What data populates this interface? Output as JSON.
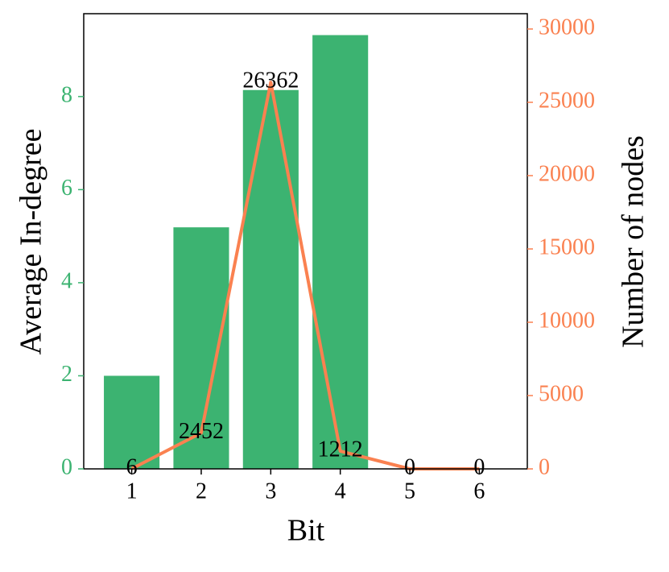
{
  "chart_data": {
    "type": "bar",
    "x": [
      1,
      2,
      3,
      4,
      5,
      6
    ],
    "xlim": [
      0.31,
      6.69
    ],
    "xticks": [
      1,
      2,
      3,
      4,
      5,
      6
    ],
    "xlabel": "Bit",
    "ylabel": "Average In-degree",
    "y2label": "Number of nodes",
    "ylim": [
      0,
      9.78
    ],
    "yticks": [
      0,
      2,
      4,
      6,
      8
    ],
    "y2lim": [
      0,
      31044
    ],
    "y2ticks": [
      0,
      5000,
      10000,
      15000,
      20000,
      25000,
      30000
    ],
    "series": [
      {
        "type": "bar",
        "color": "#3cb371",
        "values": [
          2.0,
          5.19,
          8.14,
          9.32,
          0,
          0
        ]
      },
      {
        "type": "line",
        "axis": "y2",
        "color": "#fa8150",
        "values": [
          6,
          2452,
          26362,
          1212,
          0,
          0
        ]
      }
    ]
  }
}
